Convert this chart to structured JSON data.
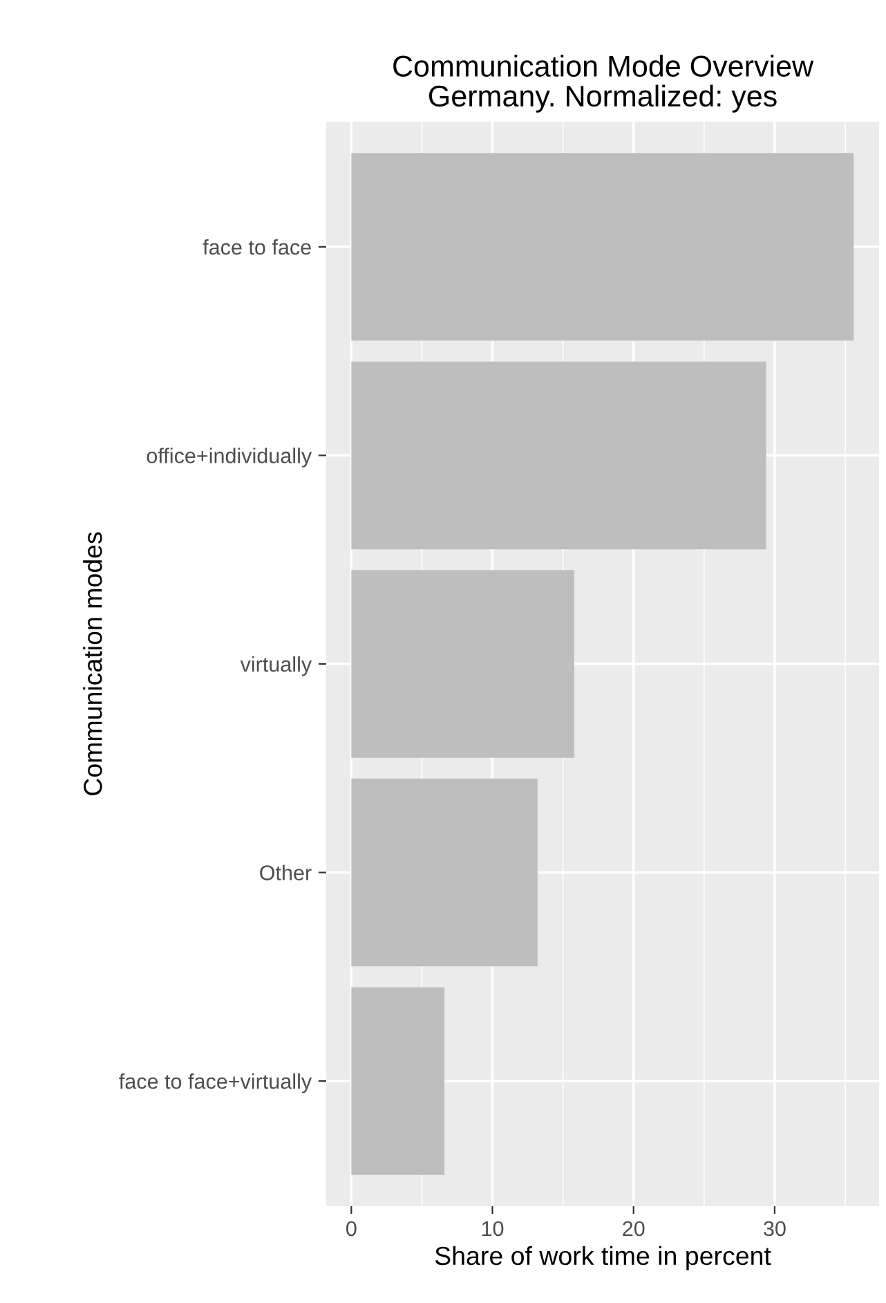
{
  "chart_data": {
    "type": "bar",
    "orientation": "horizontal",
    "title": "Communication Mode Overview\nGermany. Normalized: yes",
    "xlabel": "Share of work time in percent",
    "ylabel": "Communication modes",
    "categories": [
      "face to face",
      "office+individually",
      "virtually",
      "Other",
      "face to face+virtually"
    ],
    "values": [
      35.6,
      29.4,
      15.8,
      13.2,
      6.6
    ],
    "color": "#bebebe",
    "xlim": [
      -1.78,
      37.4
    ],
    "xticks": [
      0,
      10,
      20,
      30
    ],
    "grid": true
  }
}
